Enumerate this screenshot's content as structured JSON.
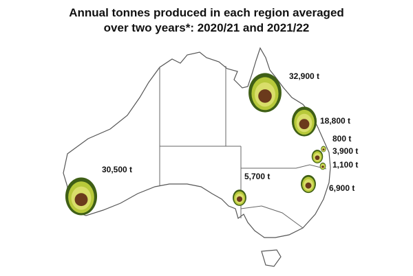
{
  "title_lines": [
    "Annual tonnes produced in each region averaged",
    "over two years*: 2020/21 and 2021/22"
  ],
  "regions": [
    {
      "value": 32900,
      "label": "32,900 t"
    },
    {
      "value": 18800,
      "label": "18,800 t"
    },
    {
      "value": 800,
      "label": "800 t"
    },
    {
      "value": 3900,
      "label": "3,900 t"
    },
    {
      "value": 1100,
      "label": "1,100 t"
    },
    {
      "value": 6900,
      "label": "6,900 t"
    },
    {
      "value": 5700,
      "label": "5,700 t"
    },
    {
      "value": 30500,
      "label": "30,500 t"
    }
  ]
}
